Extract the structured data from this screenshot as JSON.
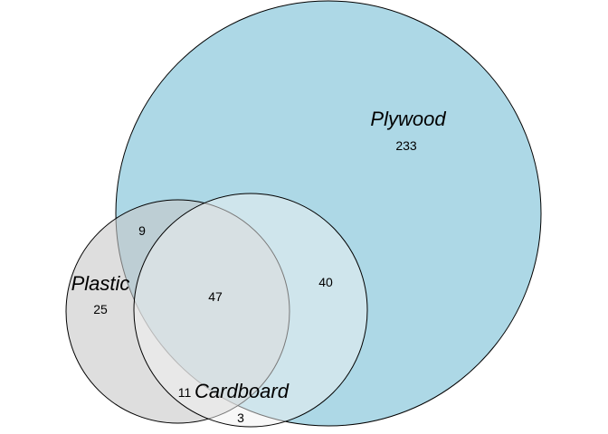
{
  "sets": [
    {
      "name": "Plywood",
      "fill": "#ADD8E6",
      "fill_opacity": 1.0
    },
    {
      "name": "Plastic",
      "fill": "#C8C8C8",
      "fill_opacity": 0.6
    },
    {
      "name": "Cardboard",
      "fill": "#F0F0F0",
      "fill_opacity": 0.5
    }
  ],
  "counts": [
    {
      "region": "plywood_only",
      "value": "233"
    },
    {
      "region": "plywood_plastic",
      "value": "9"
    },
    {
      "region": "plastic_only",
      "value": "25"
    },
    {
      "region": "all_three",
      "value": "47"
    },
    {
      "region": "plywood_cardboard",
      "value": "40"
    },
    {
      "region": "plastic_cardboard",
      "value": "11"
    },
    {
      "region": "cardboard_only",
      "value": "3"
    }
  ],
  "stroke_color": "#000000"
}
